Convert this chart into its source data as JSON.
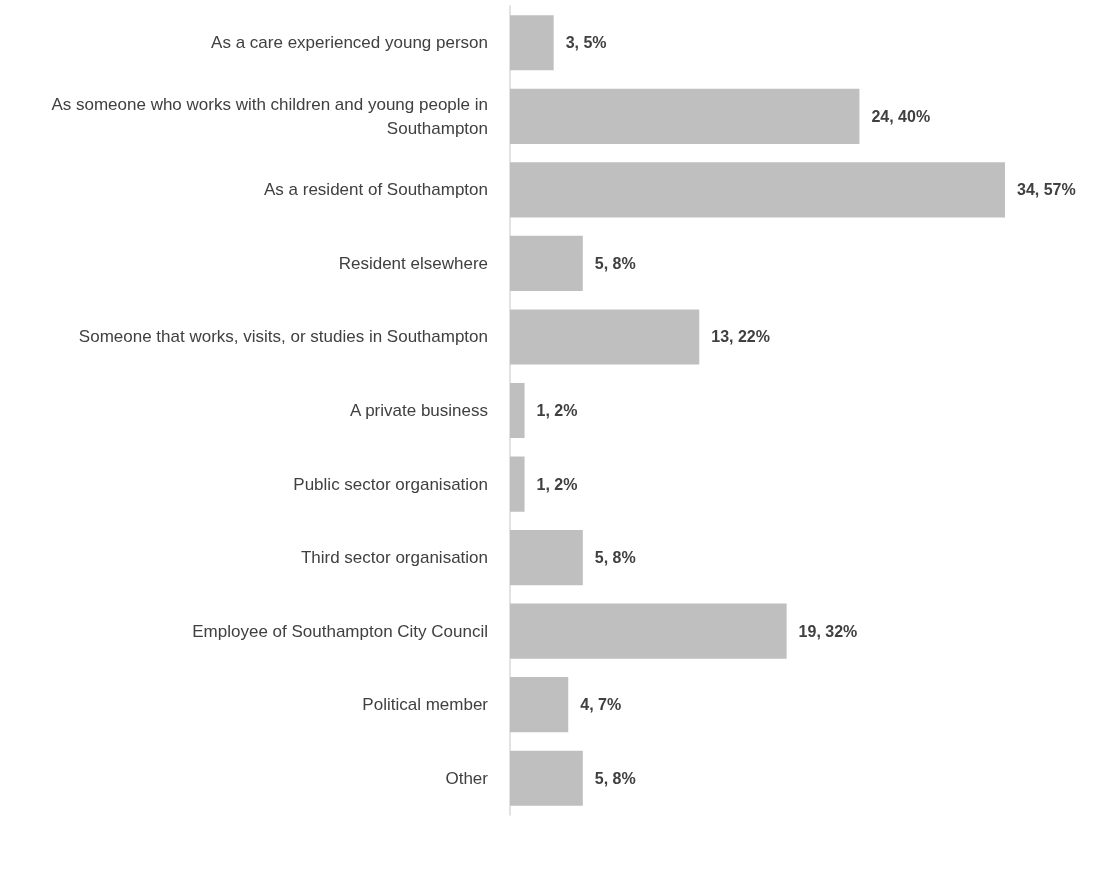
{
  "chart_data": {
    "type": "bar",
    "orientation": "horizontal",
    "tick_labels": "y",
    "categories": [
      "As a care experienced young person",
      "As someone who works with children and young people in Southampton",
      "As a resident of Southampton",
      "Resident elsewhere",
      "Someone that works, visits, or studies in Southampton",
      "A private business",
      "Public sector organisation",
      "Third sector organisation",
      "Employee of Southampton City Council",
      "Political member",
      "Other"
    ],
    "values": [
      3,
      24,
      34,
      5,
      13,
      1,
      1,
      5,
      19,
      4,
      5
    ],
    "value_labels": [
      "3, 5%",
      "24, 40%",
      "34, 57%",
      "5, 8%",
      "13, 22%",
      "1, 2%",
      "1, 2%",
      "5, 8%",
      "19, 32%",
      "4, 7%",
      "5, 8%"
    ],
    "color": "#bfbfbf"
  }
}
